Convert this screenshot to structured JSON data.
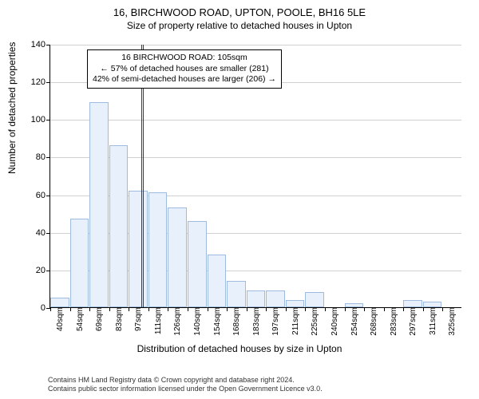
{
  "title_main": "16, BIRCHWOOD ROAD, UPTON, POOLE, BH16 5LE",
  "title_sub": "Size of property relative to detached houses in Upton",
  "y_axis_label": "Number of detached properties",
  "x_axis_label": "Distribution of detached houses by size in Upton",
  "annotation": {
    "line1": "16 BIRCHWOOD ROAD: 105sqm",
    "line2": "← 57% of detached houses are smaller (281)",
    "line3": "42% of semi-detached houses are larger (206) →"
  },
  "attribution": {
    "line1": "Contains HM Land Registry data © Crown copyright and database right 2024.",
    "line2": "Contains public sector information licensed under the Open Government Licence v3.0."
  },
  "chart": {
    "type": "histogram",
    "ylim": [
      0,
      140
    ],
    "ytick_step": 20,
    "yticks": [
      0,
      20,
      40,
      60,
      80,
      100,
      120,
      140
    ],
    "xcategories": [
      "40sqm",
      "54sqm",
      "69sqm",
      "83sqm",
      "97sqm",
      "111sqm",
      "126sqm",
      "140sqm",
      "154sqm",
      "168sqm",
      "183sqm",
      "197sqm",
      "211sqm",
      "225sqm",
      "240sqm",
      "254sqm",
      "268sqm",
      "283sqm",
      "297sqm",
      "311sqm",
      "325sqm"
    ],
    "values": [
      5,
      47,
      109,
      86,
      62,
      61,
      53,
      46,
      28,
      14,
      9,
      9,
      4,
      8,
      0,
      2,
      0,
      0,
      4,
      3,
      0
    ],
    "bar_fill": "#e8f0fb",
    "bar_border": "#9fbbe0",
    "grid_color": "#d0d0d0",
    "background_color": "#ffffff",
    "reference_line_value": 105,
    "reference_line_color": "#cc0000",
    "x_range": [
      40,
      332
    ],
    "title_fontsize": 13,
    "label_fontsize": 12,
    "tick_fontsize": 11
  }
}
